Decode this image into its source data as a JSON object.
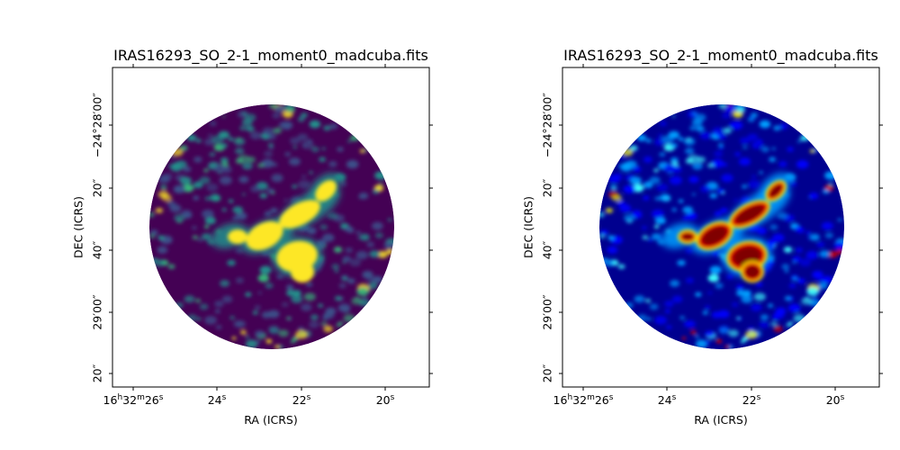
{
  "chart_data": [
    {
      "type": "heatmap",
      "title": "IRAS16293_SO_2-1_moment0_madcuba.fits",
      "colormap": "viridis",
      "xlabel": "RA (ICRS)",
      "ylabel": "DEC (ICRS)",
      "x_ticks": [
        {
          "h": "16",
          "hsup": "h",
          "m": "32",
          "msup": "m",
          "s": "26",
          "ssup": "s"
        },
        {
          "s": "24",
          "ssup": "s"
        },
        {
          "s": "22",
          "ssup": "s"
        },
        {
          "s": "20",
          "ssup": "s"
        }
      ],
      "y_ticks": [
        "−24°28′00″",
        "20″",
        "40″",
        "29′00″",
        "20″"
      ],
      "sources": [
        {
          "name": "upper-NE-elongated-lobe",
          "shape": "elongated",
          "intensity": "high"
        },
        {
          "name": "central-western-clump",
          "shape": "compact",
          "intensity": "high"
        },
        {
          "name": "southern-clump",
          "shape": "compact",
          "intensity": "high"
        }
      ]
    },
    {
      "type": "heatmap",
      "title": "IRAS16293_SO_2-1_moment0_madcuba.fits",
      "colormap": "jet",
      "xlabel": "RA (ICRS)",
      "ylabel": "DEC (ICRS)",
      "x_ticks": [
        {
          "h": "16",
          "hsup": "h",
          "m": "32",
          "msup": "m",
          "s": "26",
          "ssup": "s"
        },
        {
          "s": "24",
          "ssup": "s"
        },
        {
          "s": "22",
          "ssup": "s"
        },
        {
          "s": "20",
          "ssup": "s"
        }
      ],
      "y_ticks": [
        "−24°28′00″",
        "20″",
        "40″",
        "29′00″",
        "20″"
      ],
      "sources": [
        {
          "name": "upper-NE-elongated-lobe",
          "shape": "elongated",
          "intensity": "high"
        },
        {
          "name": "central-western-clump",
          "shape": "compact",
          "intensity": "high"
        },
        {
          "name": "southern-clump",
          "shape": "compact",
          "intensity": "high"
        }
      ]
    }
  ]
}
